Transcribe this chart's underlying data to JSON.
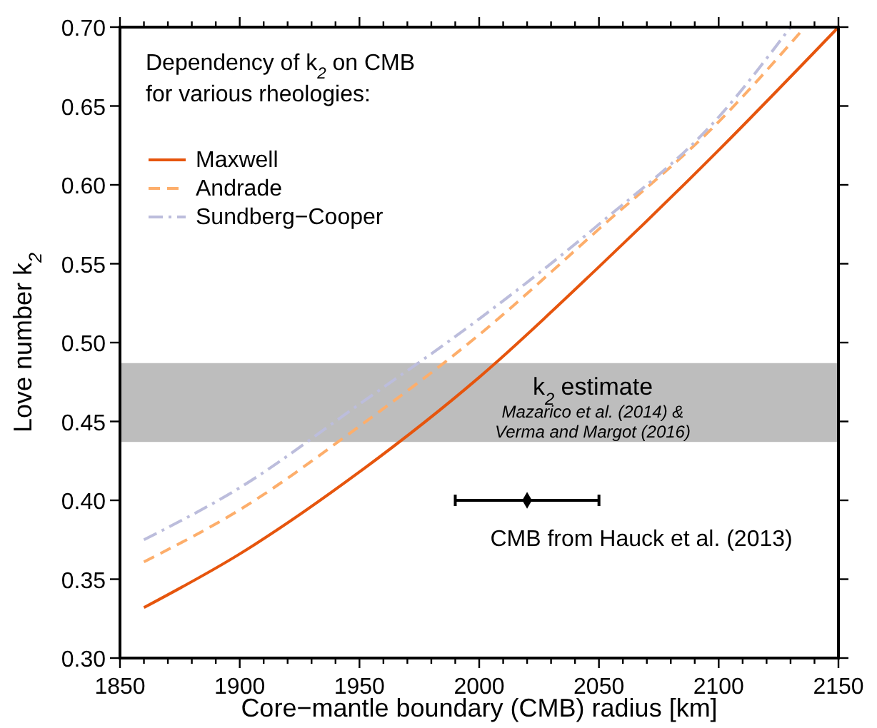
{
  "chart_data": {
    "type": "line",
    "xlabel": "Core−mantle boundary (CMB) radius [km]",
    "ylabel": "Love number k$_{2}$",
    "legend_title": "Dependency of k$_{2}$ on CMB for various rheologies:",
    "legend": "top left",
    "grid": false,
    "xlim": [
      1850,
      2150
    ],
    "ylim": [
      0.3,
      0.7
    ],
    "xticks": [
      1850,
      {
        "value": 1860,
        "label": null
      },
      {
        "value": 1870,
        "label": null
      },
      {
        "value": 1880,
        "label": null
      },
      {
        "value": 1890,
        "label": null
      },
      1900,
      {
        "value": 1910,
        "label": null
      },
      {
        "value": 1920,
        "label": null
      },
      {
        "value": 1930,
        "label": null
      },
      {
        "value": 1940,
        "label": null
      },
      1950,
      {
        "value": 1960,
        "label": null
      },
      {
        "value": 1970,
        "label": null
      },
      {
        "value": 1980,
        "label": null
      },
      {
        "value": 1990,
        "label": null
      },
      2000,
      {
        "value": 2010,
        "label": null
      },
      {
        "value": 2020,
        "label": null
      },
      {
        "value": 2030,
        "label": null
      },
      {
        "value": 2040,
        "label": null
      },
      2050,
      {
        "value": 2060,
        "label": null
      },
      {
        "value": 2070,
        "label": null
      },
      {
        "value": 2080,
        "label": null
      },
      {
        "value": 2090,
        "label": null
      },
      2100,
      {
        "value": 2110,
        "label": null
      },
      {
        "value": 2120,
        "label": null
      },
      {
        "value": 2130,
        "label": null
      },
      {
        "value": 2140,
        "label": null
      },
      2150
    ],
    "yticks": [
      {
        "value": 0.3,
        "label": "0.30"
      },
      {
        "value": 0.35,
        "label": "0.35"
      },
      {
        "value": 0.4,
        "label": "0.40"
      },
      {
        "value": 0.45,
        "label": "0.45"
      },
      {
        "value": 0.5,
        "label": "0.50"
      },
      {
        "value": 0.55,
        "label": "0.55"
      },
      {
        "value": 0.6,
        "label": "0.60"
      },
      {
        "value": 0.65,
        "label": "0.65"
      },
      {
        "value": 0.7,
        "label": "0.70"
      }
    ],
    "series": [
      {
        "name": "Maxwell",
        "color": "#e6550d",
        "line_style": "solid",
        "marker": "none",
        "x": [
          1860,
          1900,
          1950,
          2000,
          2050,
          2100,
          2150
        ],
        "values": [
          0.332,
          0.366,
          0.418,
          0.478,
          0.548,
          0.622,
          0.7
        ]
      },
      {
        "name": "Andrade",
        "color": "#fdae6b",
        "line_style": "dashed",
        "marker": "none",
        "x": [
          1860,
          1900,
          1950,
          2000,
          2050,
          2100,
          2136
        ],
        "values": [
          0.361,
          0.394,
          0.447,
          0.505,
          0.572,
          0.64,
          0.7
        ]
      },
      {
        "name": "Sundberg−Cooper",
        "color": "#bcbddc",
        "line_style": "dashdot",
        "marker": "none",
        "x": [
          1860,
          1900,
          1950,
          2000,
          2050,
          2100,
          2130
        ],
        "values": [
          0.375,
          0.408,
          0.461,
          0.515,
          0.575,
          0.643,
          0.7
        ]
      },
      {
        "type": "scatter",
        "color": "#000000",
        "marker": "diamond",
        "x": [
          2020
        ],
        "values": [
          0.4
        ],
        "xerrors": [
          30
        ]
      }
    ],
    "bands": [
      {
        "axis": "y",
        "from": 0.437,
        "to": 0.487,
        "label": "k$_{2}$ estimate",
        "color": "#bdbdbd"
      }
    ],
    "annotations": [
      "Mazarico et al. (2014) &",
      "Verma and Margot (2016)",
      {
        "text": "CMB from Hauck et al. (2013)",
        "x": 2020,
        "y": 0.4
      }
    ]
  }
}
